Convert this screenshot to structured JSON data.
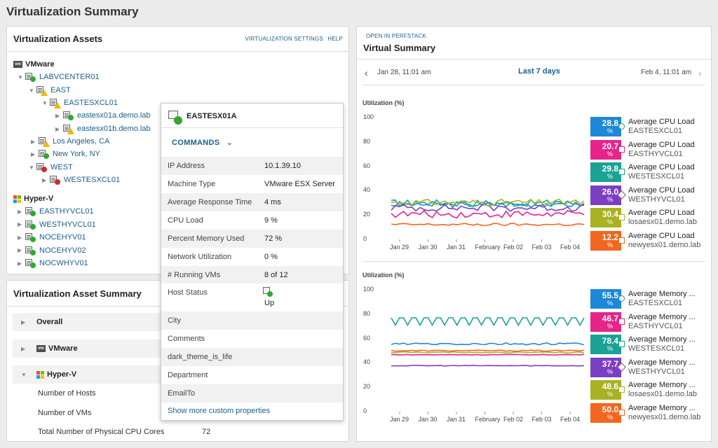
{
  "page": {
    "title": "Virtualization Summary"
  },
  "assets": {
    "title": "Virtualization Assets",
    "settings_link": "VIRTUALIZATION SETTINGS",
    "help_link": "HELP",
    "vmware_label": "VMware",
    "hyperv_label": "Hyper-V",
    "tree": [
      {
        "label": "LABVCENTER01",
        "status": "green"
      },
      {
        "label": "EAST",
        "status": "warn"
      },
      {
        "label": "EASTESXCL01",
        "status": "warn"
      },
      {
        "label": "eastesx01a.demo.lab",
        "status": "green"
      },
      {
        "label": "eastesx01b.demo.lab",
        "status": "warn"
      },
      {
        "label": "Los Angeles, CA",
        "status": "warn"
      },
      {
        "label": "New York, NY",
        "status": "green"
      },
      {
        "label": "WEST",
        "status": "red"
      },
      {
        "label": "WESTESXCL01",
        "status": "red"
      }
    ],
    "hyperv_tree": [
      {
        "label": "EASTHYVCL01"
      },
      {
        "label": "WESTHYVCL01"
      },
      {
        "label": "NOCEHYV01"
      },
      {
        "label": "NOCEHYV02"
      },
      {
        "label": "NOCWHYV01"
      }
    ]
  },
  "summary": {
    "title": "Virtualization Asset Summary",
    "overall": "Overall",
    "vmware": "VMware",
    "hyperv": "Hyper-V",
    "hosts_label": "Number of Hosts",
    "vms_label": "Number of VMs",
    "cores_label": "Total Number of Physical CPU Cores",
    "cores_value": "72"
  },
  "popup": {
    "title": "EASTESX01A",
    "commands": "COMMANDS",
    "rows": [
      {
        "k": "IP Address",
        "v": "10.1.39.10"
      },
      {
        "k": "Machine Type",
        "v": "VMware ESX Server"
      },
      {
        "k": "Average Response Time",
        "v": "4 ms"
      },
      {
        "k": "CPU Load",
        "v": "9 %"
      },
      {
        "k": "Percent Memory Used",
        "v": "72 %"
      },
      {
        "k": "Network Utilization",
        "v": "0 %"
      },
      {
        "k": "# Running VMs",
        "v": "8 of 12"
      }
    ],
    "host_status_label": "Host Status",
    "host_status_value": "Up",
    "extra": [
      "City",
      "Comments",
      "dark_theme_is_life",
      "Department",
      "EmailTo"
    ],
    "more_link": "Show more custom properties"
  },
  "virtual": {
    "perfstack_link": "OPEN IN PERFSTACK",
    "title": "Virtual Summary",
    "start": "Jan 28, 11:01 am",
    "range": "Last 7 days",
    "end": "Feb 4, 11:01 am",
    "colors": [
      "#1e88d8",
      "#e6248a",
      "#1aa394",
      "#7b3fc4",
      "#a8b222",
      "#f2661f"
    ]
  },
  "chart_data": [
    {
      "type": "line",
      "ylabel": "Utilization (%)",
      "ylim": [
        0,
        100
      ],
      "yticks": [
        0,
        20,
        40,
        60,
        80,
        100
      ],
      "xticks": [
        "Jan 29",
        "Jan 30",
        "Jan 31",
        "February",
        "Feb 02",
        "Feb 03",
        "Feb 04"
      ],
      "series": [
        {
          "name": "Average CPU Load",
          "entity": "EASTESXCL01",
          "value": "28.8",
          "base": 28.8,
          "var": 2.5
        },
        {
          "name": "Average CPU Load",
          "entity": "EASTHYVCL01",
          "value": "20.7",
          "base": 20.7,
          "var": 3
        },
        {
          "name": "Average CPU Load",
          "entity": "WESTESXCL01",
          "value": "29.8",
          "base": 29.8,
          "var": 3
        },
        {
          "name": "Average CPU Load",
          "entity": "WESTHYVCL01",
          "value": "26.0",
          "base": 26.0,
          "var": 3
        },
        {
          "name": "Average CPU Load",
          "entity": "losaesx01.demo.lab",
          "value": "30.4",
          "base": 30.4,
          "var": 2.5
        },
        {
          "name": "Average CPU Load",
          "entity": "newyesx01.demo.lab",
          "value": "12.2",
          "base": 12.2,
          "var": 1
        }
      ]
    },
    {
      "type": "line",
      "ylabel": "Utilization (%)",
      "ylim": [
        0,
        100
      ],
      "yticks": [
        0,
        20,
        40,
        60,
        80,
        100
      ],
      "xticks": [
        "Jan 29",
        "Jan 30",
        "Jan 31",
        "February",
        "Feb 02",
        "Feb 03",
        "Feb 04"
      ],
      "series": [
        {
          "name": "Average Memory ...",
          "entity": "EASTESXCL01",
          "value": "55.5",
          "base": 55.5,
          "var": 1
        },
        {
          "name": "Average Memory ...",
          "entity": "EASTHYVCL01",
          "value": "46.7",
          "base": 46.7,
          "var": 0.3
        },
        {
          "name": "Average Memory ...",
          "entity": "WESTESXCL01",
          "value": "78.4",
          "base": 76,
          "var": 3
        },
        {
          "name": "Average Memory ...",
          "entity": "WESTHYVCL01",
          "value": "37.7",
          "base": 37.7,
          "var": 0.3
        },
        {
          "name": "Average Memory ...",
          "entity": "losaesx01.demo.lab",
          "value": "48.6",
          "base": 48.6,
          "var": 0.5
        },
        {
          "name": "Average Memory ...",
          "entity": "newyesx01.demo.lab",
          "value": "50.0",
          "base": 50.0,
          "var": 0.5
        }
      ]
    }
  ]
}
